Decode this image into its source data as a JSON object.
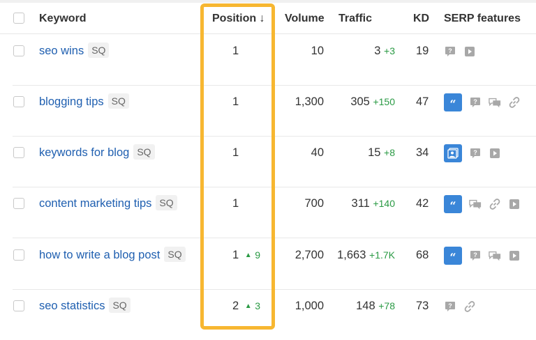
{
  "header": {
    "keyword": "Keyword",
    "position": "Position ↓",
    "volume": "Volume",
    "traffic": "Traffic",
    "kd": "KD",
    "serp": "SERP features"
  },
  "rows": [
    {
      "keyword": "seo wins",
      "badge": "SQ",
      "position": "1",
      "pos_change": "",
      "volume": "10",
      "traffic": "3",
      "traffic_change": "+3",
      "kd": "19",
      "serp": [
        "question-icon",
        "video-icon"
      ]
    },
    {
      "keyword": "blogging tips",
      "badge": "SQ",
      "position": "1",
      "pos_change": "",
      "volume": "1,300",
      "traffic": "305",
      "traffic_change": "+150",
      "kd": "47",
      "serp": [
        "featured-snippet-icon",
        "question-icon",
        "discussion-icon",
        "link-icon"
      ]
    },
    {
      "keyword": "keywords for blog",
      "badge": "SQ",
      "position": "1",
      "pos_change": "",
      "volume": "40",
      "traffic": "15",
      "traffic_change": "+8",
      "kd": "34",
      "serp": [
        "image-pack-icon",
        "question-icon",
        "video-icon"
      ]
    },
    {
      "keyword": "content marketing tips",
      "badge": "SQ",
      "position": "1",
      "pos_change": "",
      "volume": "700",
      "traffic": "311",
      "traffic_change": "+140",
      "kd": "42",
      "serp": [
        "featured-snippet-icon",
        "discussion-icon",
        "link-icon",
        "video-icon"
      ]
    },
    {
      "keyword": "how to write a blog post",
      "badge": "SQ",
      "position": "1",
      "pos_change": "9",
      "volume": "2,700",
      "traffic": "1,663",
      "traffic_change": "+1.7K",
      "kd": "68",
      "serp": [
        "featured-snippet-icon",
        "question-icon",
        "discussion-icon",
        "video-icon"
      ]
    },
    {
      "keyword": "seo statistics",
      "badge": "SQ",
      "position": "2",
      "pos_change": "3",
      "volume": "1,000",
      "traffic": "148",
      "traffic_change": "+78",
      "kd": "73",
      "serp": [
        "question-icon",
        "link-icon"
      ]
    }
  ],
  "colors": {
    "accent": "#3a86d8",
    "highlight": "#f7b731",
    "positive": "#2a9a44",
    "link": "#1f5fb0"
  }
}
